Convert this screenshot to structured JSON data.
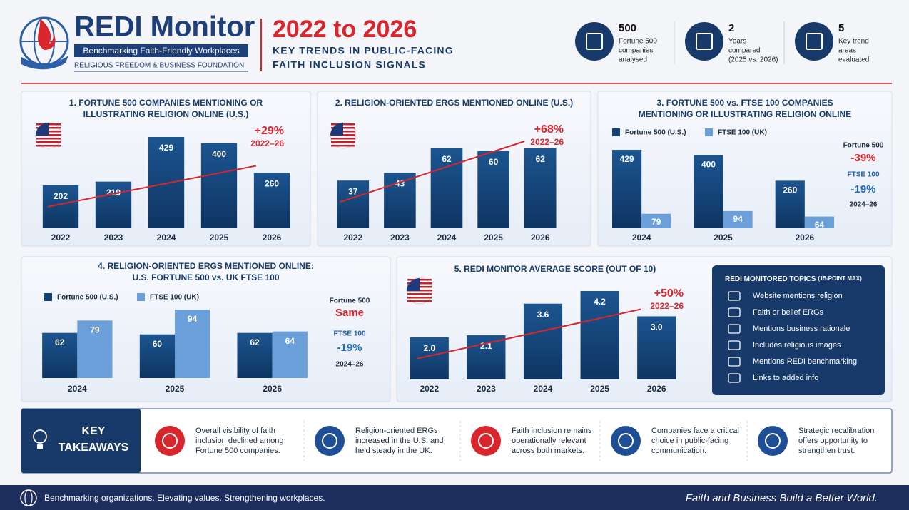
{
  "header": {
    "brand": "REDI Monitor",
    "tagline": "Benchmarking Faith-Friendly Workplaces",
    "org": "RELIGIOUS FREEDOM & BUSINESS FOUNDATION",
    "headline": "2022 to 2026",
    "subtitle_lines": [
      "KEY TRENDS IN PUBLIC-FACING",
      "FAITH INCLUSION SIGNALS"
    ]
  },
  "stats": [
    {
      "number": 500,
      "lines": [
        "Fortune 500",
        "companies",
        "analysed"
      ]
    },
    {
      "number": 2,
      "lines": [
        "Years",
        "compared",
        "(2025 vs. 2026)"
      ]
    },
    {
      "number": 5,
      "lines": [
        "Key trend",
        "areas",
        "evaluated"
      ]
    }
  ],
  "chart_data": [
    {
      "type": "bar",
      "title": [
        "1. FORTUNE 500 COMPANIES MENTIONING OR",
        "ILLUSTRATING RELIGION ONLINE (U.S.)"
      ],
      "categories": [
        "2022",
        "2023",
        "2024",
        "2025",
        "2026"
      ],
      "values": [
        202,
        219,
        429,
        400,
        260
      ],
      "color": "#124275",
      "annotation": [
        "+29%",
        "2022–26"
      ]
    },
    {
      "type": "bar",
      "title": [
        "2. RELIGION-ORIENTED ERGS MENTIONED ONLINE (U.S.)"
      ],
      "categories": [
        "2022",
        "2023",
        "2024",
        "2025",
        "2026"
      ],
      "values": [
        37,
        43,
        62,
        60,
        62
      ],
      "color": "#124275",
      "annotation": [
        "+68%",
        "2022–26"
      ]
    },
    {
      "type": "grouped",
      "title": [
        "3. FORTUNE 500 vs. FTSE 100 COMPANIES",
        "MENTIONING OR ILLUSTRATING RELIGION ONLINE"
      ],
      "categories": [
        "2024",
        "2025",
        "2026"
      ],
      "series": [
        {
          "name": "Fortune 500 (U.S.)",
          "color": "#124275",
          "values": [
            429,
            400,
            260
          ]
        },
        {
          "name": "FTSE 100 (UK)",
          "color": "#6b9fd9",
          "values": [
            79,
            94,
            64
          ]
        }
      ],
      "notes": [
        "Fortune 500",
        "-39%",
        "FTSE 100",
        "-19%",
        "2024–26"
      ]
    },
    {
      "type": "grouped",
      "title": [
        "4. RELIGION-ORIENTED ERGS MENTIONED ONLINE:",
        "U.S. FORTUNE 500 vs. UK FTSE 100"
      ],
      "categories": [
        "2024",
        "2025",
        "2026"
      ],
      "series": [
        {
          "name": "Fortune 500 (U.S.)",
          "color": "#124275",
          "values": [
            62,
            60,
            62
          ]
        },
        {
          "name": "FTSE 100 (UK)",
          "color": "#6b9fd9",
          "values": [
            79,
            94,
            64
          ]
        }
      ],
      "notes": [
        "Fortune 500",
        "Same",
        "FTSE 100",
        "-19%",
        "2024–26"
      ]
    },
    {
      "type": "bar",
      "title": [
        "5. REDI MONITOR AVERAGE SCORE (OUT OF 10)"
      ],
      "categories": [
        "2022",
        "2023",
        "2024",
        "2025",
        "2026"
      ],
      "values": [
        2.0,
        2.1,
        3.6,
        4.2,
        3.0
      ],
      "value_labels": [
        "2.0",
        "2.1",
        "3.6",
        "4.2",
        "3.0"
      ],
      "color": "#124275",
      "annotation": [
        "+50%",
        "2022–26"
      ]
    }
  ],
  "topics": {
    "title": "REDI MONITORED TOPICS",
    "note": "(15-POINT MAX)",
    "items": [
      "Website mentions religion",
      "Faith or belief ERGs",
      "Mentions business rationale",
      "Includes religious images",
      "Mentions REDI benchmarking",
      "Links to added info"
    ]
  },
  "takeaways": {
    "heading": [
      "KEY",
      "TAKEAWAYS"
    ],
    "items": [
      [
        "Overall visibility of faith",
        "inclusion declined among",
        "Fortune 500 companies."
      ],
      [
        "Religion-oriented ERGs",
        "increased in the U.S. and",
        "held steady in the UK."
      ],
      [
        "Faith inclusion remains",
        "operationally relevant",
        "across both markets."
      ],
      [
        "Companies face a critical",
        "choice in public-facing",
        "communication."
      ],
      [
        "Strategic recalibration",
        "offers opportunity to",
        "strengthen trust."
      ]
    ]
  },
  "footer": {
    "left": "Benchmarking organizations.  Elevating values.  Strengthening workplaces.",
    "right": "Faith and Business Build a Better World."
  }
}
